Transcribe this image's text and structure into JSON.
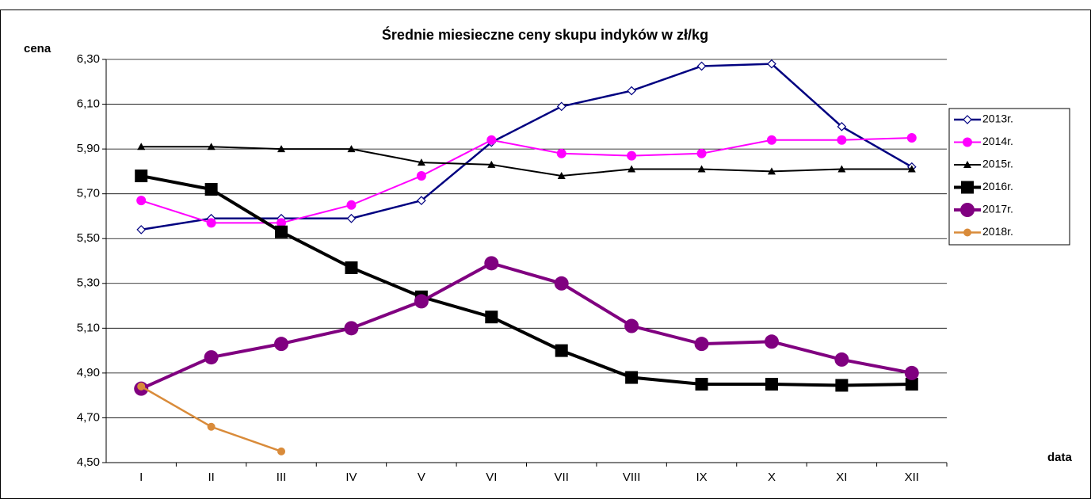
{
  "chart_data": {
    "type": "line",
    "title": "Średnie miesieczne ceny skupu indyków w zł/kg",
    "y_label": "cena",
    "x_label": "data",
    "categories": [
      "I",
      "II",
      "III",
      "IV",
      "V",
      "VI",
      "VII",
      "VIII",
      "IX",
      "X",
      "XI",
      "XII"
    ],
    "ylim": [
      4.5,
      6.3
    ],
    "yticks": [
      {
        "value": 4.5,
        "label": "4,50"
      },
      {
        "value": 4.7,
        "label": "4,70"
      },
      {
        "value": 4.9,
        "label": "4,90"
      },
      {
        "value": 5.1,
        "label": "5,10"
      },
      {
        "value": 5.3,
        "label": "5,30"
      },
      {
        "value": 5.5,
        "label": "5,50"
      },
      {
        "value": 5.7,
        "label": "5,70"
      },
      {
        "value": 5.9,
        "label": "5,90"
      },
      {
        "value": 6.1,
        "label": "6,10"
      },
      {
        "value": 6.3,
        "label": "6,30"
      }
    ],
    "grid": true,
    "legend": "right",
    "series": [
      {
        "name": "2013r.",
        "color": "#000080",
        "marker": "diamond-open",
        "width": 2.5,
        "values": [
          5.54,
          5.59,
          5.59,
          5.59,
          5.67,
          5.93,
          6.09,
          6.16,
          6.27,
          6.28,
          6.0,
          5.82
        ]
      },
      {
        "name": "2014r.",
        "color": "#ff00ff",
        "marker": "circle",
        "width": 2,
        "values": [
          5.67,
          5.57,
          5.57,
          5.65,
          5.78,
          5.94,
          5.88,
          5.87,
          5.88,
          5.94,
          5.94,
          5.95
        ]
      },
      {
        "name": "2015r.",
        "color": "#000000",
        "marker": "triangle",
        "width": 2,
        "values": [
          5.91,
          5.91,
          5.9,
          5.9,
          5.84,
          5.83,
          5.78,
          5.81,
          5.81,
          5.8,
          5.81,
          5.81
        ]
      },
      {
        "name": "2016r.",
        "color": "#000000",
        "marker": "square",
        "width": 4,
        "values": [
          5.78,
          5.72,
          5.53,
          5.37,
          5.24,
          5.15,
          5.0,
          4.88,
          4.85,
          4.85,
          4.845,
          4.85
        ]
      },
      {
        "name": "2017r.",
        "color": "#800080",
        "marker": "circle-big",
        "width": 4,
        "values": [
          4.83,
          4.97,
          5.03,
          5.1,
          5.22,
          5.39,
          5.3,
          5.11,
          5.03,
          5.04,
          4.96,
          4.9
        ]
      },
      {
        "name": "2018r.",
        "color": "#d98b3a",
        "marker": "circle-small",
        "width": 2.5,
        "values": [
          4.84,
          4.66,
          4.55,
          null,
          null,
          null,
          null,
          null,
          null,
          null,
          null,
          null
        ]
      }
    ]
  }
}
